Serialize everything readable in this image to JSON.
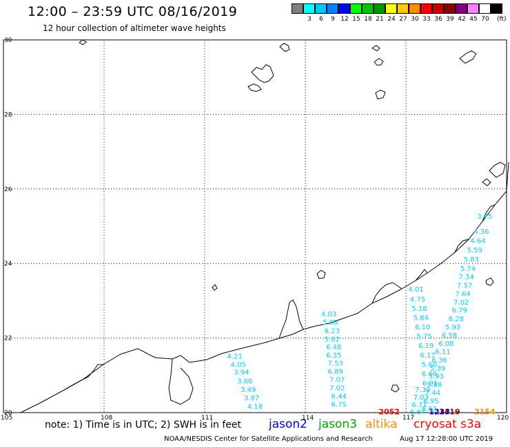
{
  "header": {
    "title": "12:00 – 23:59 UTC 08/16/2019",
    "subtitle": "12 hour collection of altimeter wave heights"
  },
  "color_scale": {
    "unit": "(ft)",
    "bins": [
      {
        "label": "",
        "color": "#808080"
      },
      {
        "label": "3",
        "color": "#00ffff"
      },
      {
        "label": "6",
        "color": "#00c8ff"
      },
      {
        "label": "9",
        "color": "#0080ff"
      },
      {
        "label": "12",
        "color": "#0000ff"
      },
      {
        "label": "15",
        "color": "#00ff00"
      },
      {
        "label": "18",
        "color": "#00c800"
      },
      {
        "label": "21",
        "color": "#009600"
      },
      {
        "label": "24",
        "color": "#ffff00"
      },
      {
        "label": "27",
        "color": "#ffc800"
      },
      {
        "label": "30",
        "color": "#ff8c00"
      },
      {
        "label": "33",
        "color": "#ff0000"
      },
      {
        "label": "36",
        "color": "#c80000"
      },
      {
        "label": "39",
        "color": "#8b0000"
      },
      {
        "label": "42",
        "color": "#800080"
      },
      {
        "label": "45",
        "color": "#ff80ff"
      },
      {
        "label": "70",
        "color": "#ffffff"
      },
      {
        "label": "",
        "color": "#000000"
      }
    ]
  },
  "axes": {
    "lat_labels": [
      "30",
      "28",
      "26",
      "24",
      "22",
      "20"
    ],
    "lon_labels": [
      "105",
      "108",
      "111",
      "114",
      "117",
      "120"
    ],
    "lat_values": [
      30,
      28,
      26,
      24,
      22,
      20
    ],
    "lon_values": [
      105,
      108,
      111,
      114,
      117,
      120
    ],
    "lon_range": [
      105,
      120
    ],
    "lat_range": [
      20,
      30
    ]
  },
  "tracks": [
    {
      "satellite": "cryosat s3a",
      "time_label": "1419",
      "time_color": "#8b0000",
      "value_color": "#00c8ff",
      "points": [
        {
          "lon": 111.9,
          "lat": 21.45,
          "swh": "4.21"
        },
        {
          "lon": 112.0,
          "lat": 21.23,
          "swh": "4.05"
        },
        {
          "lon": 112.1,
          "lat": 21.02,
          "swh": "3.94"
        },
        {
          "lon": 112.2,
          "lat": 20.78,
          "swh": "3.60"
        },
        {
          "lon": 112.3,
          "lat": 20.55,
          "swh": "3.49"
        },
        {
          "lon": 112.4,
          "lat": 20.33,
          "swh": "3.87"
        },
        {
          "lon": 112.5,
          "lat": 20.1,
          "swh": "4.18"
        }
      ]
    },
    {
      "satellite": "cryosat s3a",
      "time_label": "2052",
      "time_color": "#ff0000",
      "value_color": "#00c8ff",
      "points": [
        {
          "lon": 114.7,
          "lat": 22.58,
          "swh": "4.03"
        },
        {
          "lon": 114.75,
          "lat": 22.36,
          "swh": "5.08"
        },
        {
          "lon": 114.8,
          "lat": 22.13,
          "swh": "6.23"
        },
        {
          "lon": 114.8,
          "lat": 21.91,
          "swh": "5.82"
        },
        {
          "lon": 114.85,
          "lat": 21.7,
          "swh": "6.48"
        },
        {
          "lon": 114.85,
          "lat": 21.48,
          "swh": "6.35"
        },
        {
          "lon": 114.9,
          "lat": 21.26,
          "swh": "7.53"
        },
        {
          "lon": 114.9,
          "lat": 21.04,
          "swh": "6.89"
        },
        {
          "lon": 114.95,
          "lat": 20.82,
          "swh": "7.07"
        },
        {
          "lon": 114.95,
          "lat": 20.6,
          "swh": "7.02"
        },
        {
          "lon": 115.0,
          "lat": 20.38,
          "swh": "6.44"
        },
        {
          "lon": 115.0,
          "lat": 20.16,
          "swh": "6.75"
        }
      ]
    },
    {
      "satellite": "jason2",
      "time_label": "1233",
      "time_color": "#0000c8",
      "value_color": "#00c8ff",
      "points": [
        {
          "lon": 117.3,
          "lat": 23.25,
          "swh": "4.01"
        },
        {
          "lon": 117.35,
          "lat": 22.98,
          "swh": "4.75"
        },
        {
          "lon": 117.4,
          "lat": 22.73,
          "swh": "5.18"
        },
        {
          "lon": 117.45,
          "lat": 22.48,
          "swh": "5.84"
        },
        {
          "lon": 117.5,
          "lat": 22.23,
          "swh": "6.10"
        },
        {
          "lon": 117.55,
          "lat": 21.98,
          "swh": "5.75"
        },
        {
          "lon": 117.6,
          "lat": 21.73,
          "swh": "6.19"
        },
        {
          "lon": 117.65,
          "lat": 21.48,
          "swh": "6.17"
        },
        {
          "lon": 117.7,
          "lat": 21.23,
          "swh": "5.60"
        },
        {
          "lon": 117.7,
          "lat": 20.98,
          "swh": "6.66"
        },
        {
          "lon": 117.72,
          "lat": 20.73,
          "swh": "6.91"
        },
        {
          "lon": 117.5,
          "lat": 20.55,
          "swh": "7.39"
        },
        {
          "lon": 117.45,
          "lat": 20.35,
          "swh": "7.03"
        },
        {
          "lon": 117.4,
          "lat": 20.15,
          "swh": "6.71"
        },
        {
          "lon": 117.35,
          "lat": 19.95,
          "swh": "6.84"
        }
      ]
    },
    {
      "satellite": "jason2",
      "time_label": "1234",
      "time_color": "#0000c8",
      "value_color": "#00c8ff",
      "points": [
        {
          "lon": 119.35,
          "lat": 25.2,
          "swh": "3.75"
        },
        {
          "lon": 119.25,
          "lat": 24.8,
          "swh": "4.36"
        },
        {
          "lon": 119.15,
          "lat": 24.55,
          "swh": "4.64"
        },
        {
          "lon": 119.05,
          "lat": 24.3,
          "swh": "5.59"
        },
        {
          "lon": 118.95,
          "lat": 24.05,
          "swh": "5.83"
        },
        {
          "lon": 118.85,
          "lat": 23.8,
          "swh": "5.74"
        },
        {
          "lon": 118.8,
          "lat": 23.58,
          "swh": "7.34"
        },
        {
          "lon": 118.75,
          "lat": 23.35,
          "swh": "7.57"
        },
        {
          "lon": 118.7,
          "lat": 23.13,
          "swh": "7.64"
        },
        {
          "lon": 118.65,
          "lat": 22.9,
          "swh": "7.02"
        },
        {
          "lon": 118.6,
          "lat": 22.68,
          "swh": "6.79"
        },
        {
          "lon": 118.5,
          "lat": 22.45,
          "swh": "6.28"
        },
        {
          "lon": 118.4,
          "lat": 22.23,
          "swh": "5.93"
        },
        {
          "lon": 118.3,
          "lat": 22.01,
          "swh": "6.58"
        },
        {
          "lon": 118.2,
          "lat": 21.79,
          "swh": "6.08"
        },
        {
          "lon": 118.1,
          "lat": 21.57,
          "swh": "6.11"
        },
        {
          "lon": 118.0,
          "lat": 21.35,
          "swh": "6.36"
        },
        {
          "lon": 117.95,
          "lat": 21.13,
          "swh": "5.39"
        },
        {
          "lon": 117.9,
          "lat": 20.91,
          "swh": "5.93"
        },
        {
          "lon": 117.85,
          "lat": 20.69,
          "swh": "5.88"
        },
        {
          "lon": 117.8,
          "lat": 20.47,
          "swh": "7.44"
        },
        {
          "lon": 117.75,
          "lat": 20.25,
          "swh": "6.95"
        },
        {
          "lon": 117.7,
          "lat": 20.05,
          "swh": "6.61"
        }
      ]
    },
    {
      "satellite": "altika",
      "time_label": "2154",
      "time_color": "#ff8c00",
      "value_color": "#00c8ff",
      "points": []
    }
  ],
  "footer": {
    "note": "note:  1) Time is in UTC;  2) SWH is in feet",
    "satellites": [
      {
        "name": "jason2",
        "color": "#0000c8"
      },
      {
        "name": "jason3",
        "color": "#00a000"
      },
      {
        "name": "altika",
        "color": "#ff8c00"
      },
      {
        "name": "cryosat s3a",
        "color": "#ff0000"
      }
    ],
    "credit": "NOAA/NESDIS Center for Satellite Applications and Research",
    "timestamp": "Aug 17 12:28:00 UTC 2019"
  }
}
